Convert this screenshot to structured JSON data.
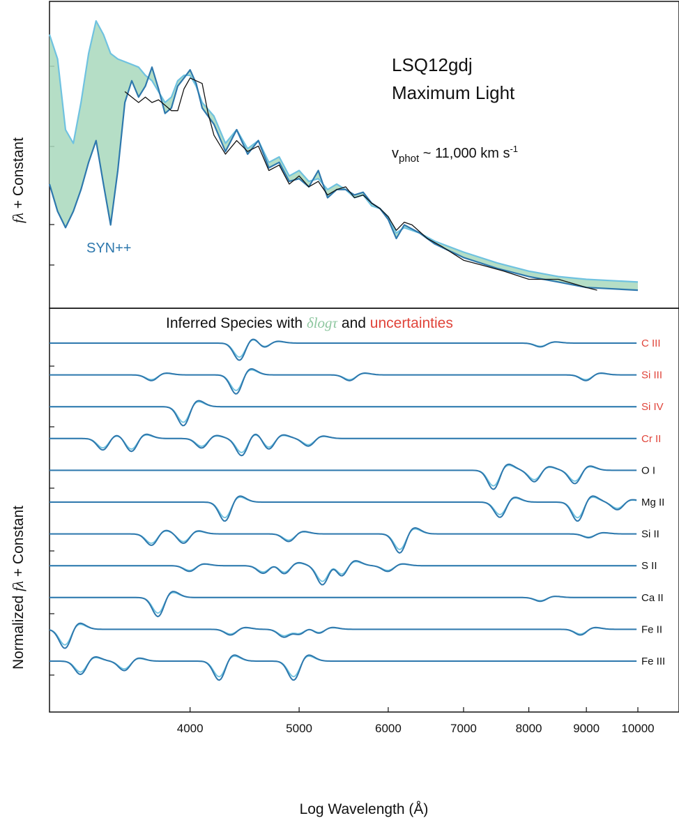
{
  "chart_data": [
    {
      "type": "line",
      "panel": "top",
      "ylabel_math": "fλ",
      "ylabel_rest": " + Constant",
      "annotations": {
        "object": "LSQ12gdj",
        "epoch": "Maximum Light",
        "vel_v": "v",
        "vel_sub": "phot",
        "vel_value": " ~ 11,000 km s",
        "vel_sup": "-1",
        "model": "SYN++"
      },
      "x_range": [
        3000,
        10000
      ],
      "x_scale": "log",
      "series": [
        {
          "name": "",
          "color": "#111111",
          "x": [
            3500,
            3550,
            3600,
            3650,
            3700,
            3750,
            3800,
            3850,
            3900,
            3950,
            4000,
            4050,
            4100,
            4150,
            4200,
            4300,
            4400,
            4500,
            4600,
            4700,
            4800,
            4900,
            5000,
            5100,
            5200,
            5300,
            5400,
            5500,
            5600,
            5700,
            5800,
            5900,
            6000,
            6100,
            6200,
            6300,
            6500,
            6700,
            7000,
            7300,
            7600,
            8000,
            8500,
            9000,
            9200
          ],
          "y": [
            0.74,
            0.72,
            0.7,
            0.72,
            0.7,
            0.71,
            0.69,
            0.67,
            0.67,
            0.75,
            0.79,
            0.78,
            0.77,
            0.66,
            0.58,
            0.51,
            0.56,
            0.52,
            0.54,
            0.45,
            0.47,
            0.4,
            0.43,
            0.39,
            0.41,
            0.36,
            0.38,
            0.39,
            0.35,
            0.36,
            0.33,
            0.31,
            0.28,
            0.23,
            0.26,
            0.25,
            0.2,
            0.17,
            0.12,
            0.1,
            0.08,
            0.05,
            0.05,
            0.02,
            0.01
          ]
        },
        {
          "name": "SYN++",
          "color": "#2e78ad",
          "x": [
            3000,
            3050,
            3100,
            3150,
            3200,
            3250,
            3300,
            3350,
            3400,
            3450,
            3500,
            3550,
            3600,
            3650,
            3700,
            3750,
            3800,
            3850,
            3900,
            3950,
            4000,
            4050,
            4100,
            4200,
            4300,
            4400,
            4500,
            4600,
            4700,
            4800,
            4900,
            5000,
            5100,
            5200,
            5300,
            5400,
            5500,
            5600,
            5700,
            5800,
            5900,
            6000,
            6100,
            6200,
            6400,
            6600,
            7000,
            7500,
            8000,
            8500,
            9000,
            10000
          ],
          "y": [
            0.4,
            0.3,
            0.24,
            0.3,
            0.38,
            0.48,
            0.56,
            0.4,
            0.25,
            0.45,
            0.7,
            0.78,
            0.72,
            0.76,
            0.83,
            0.75,
            0.66,
            0.68,
            0.76,
            0.79,
            0.82,
            0.77,
            0.68,
            0.62,
            0.52,
            0.6,
            0.51,
            0.56,
            0.46,
            0.48,
            0.41,
            0.42,
            0.39,
            0.45,
            0.35,
            0.38,
            0.38,
            0.36,
            0.37,
            0.33,
            0.31,
            0.27,
            0.2,
            0.25,
            0.22,
            0.18,
            0.13,
            0.09,
            0.06,
            0.04,
            0.02,
            0.01
          ]
        },
        {
          "name": "",
          "color": "#6fc2e0",
          "x": [
            3000,
            3050,
            3100,
            3150,
            3200,
            3250,
            3300,
            3350,
            3400,
            3450,
            3500,
            3550,
            3600,
            3650,
            3700,
            3750,
            3800,
            3850,
            3900,
            3950,
            4000,
            4050,
            4100,
            4200,
            4300,
            4400,
            4500,
            4600,
            4700,
            4800,
            4900,
            5000,
            5100,
            5200,
            5300,
            5400,
            5500,
            5600,
            5700,
            5800,
            5900,
            6000,
            6100,
            6200,
            6400,
            6600,
            7000,
            7500,
            8000,
            8500,
            9000,
            10000
          ],
          "y": [
            0.95,
            0.86,
            0.6,
            0.55,
            0.7,
            0.88,
            1.0,
            0.95,
            0.88,
            0.86,
            0.85,
            0.84,
            0.83,
            0.8,
            0.78,
            0.74,
            0.7,
            0.72,
            0.78,
            0.8,
            0.8,
            0.76,
            0.7,
            0.65,
            0.55,
            0.6,
            0.53,
            0.56,
            0.48,
            0.5,
            0.43,
            0.45,
            0.41,
            0.42,
            0.38,
            0.4,
            0.38,
            0.35,
            0.36,
            0.32,
            0.31,
            0.28,
            0.22,
            0.24,
            0.22,
            0.19,
            0.15,
            0.11,
            0.08,
            0.06,
            0.05,
            0.04
          ]
        }
      ]
    },
    {
      "type": "line",
      "panel": "bottom",
      "title_pre": "Inferred Species with ",
      "title_green": "δlogτ",
      "title_mid": " and ",
      "title_red": "uncertainties",
      "ylabel_pre": "Normalized ",
      "ylabel_math": "fλ",
      "ylabel_rest": " + Constant",
      "xlabel": "Log Wavelength (Å)",
      "x_range": [
        3000,
        10000
      ],
      "x_scale": "log",
      "x_ticks": [
        "4000",
        "5000",
        "6000",
        "7000",
        "8000",
        "9000",
        "10000"
      ],
      "species": [
        {
          "name": "C III",
          "flag": "uncertain",
          "lines": [
            4430,
            4650,
            8200
          ],
          "depths": [
            0.9,
            0.3,
            0.2
          ]
        },
        {
          "name": "Si III",
          "flag": "uncertain",
          "lines": [
            3700,
            4400,
            5550,
            9000
          ],
          "depths": [
            0.3,
            1.0,
            0.3,
            0.3
          ]
        },
        {
          "name": "Si IV",
          "flag": "uncertain",
          "lines": [
            3950
          ],
          "depths": [
            1.0
          ]
        },
        {
          "name": "Cr II",
          "flag": "uncertain",
          "lines": [
            3350,
            3550,
            4100,
            4450,
            4700,
            5100
          ],
          "depths": [
            0.6,
            0.7,
            0.5,
            0.9,
            0.6,
            0.4
          ]
        },
        {
          "name": "O I",
          "flag": "",
          "lines": [
            7450,
            8100,
            8800
          ],
          "depths": [
            1.0,
            0.6,
            0.7
          ]
        },
        {
          "name": "Mg II",
          "flag": "",
          "lines": [
            4300,
            7550,
            8850,
            9600
          ],
          "depths": [
            1.0,
            0.8,
            1.0,
            0.4
          ]
        },
        {
          "name": "Si II",
          "flag": "",
          "lines": [
            3700,
            3950,
            4900,
            6150,
            9050
          ],
          "depths": [
            0.6,
            0.5,
            0.4,
            1.0,
            0.2
          ]
        },
        {
          "name": "S II",
          "flag": "",
          "lines": [
            4000,
            4650,
            4850,
            5250,
            5450,
            6000
          ],
          "depths": [
            0.3,
            0.4,
            0.5,
            1.0,
            0.8,
            0.3
          ]
        },
        {
          "name": "Ca II",
          "flag": "",
          "lines": [
            3750,
            8200
          ],
          "depths": [
            1.0,
            0.2
          ]
        },
        {
          "name": "Fe II",
          "flag": "",
          "lines": [
            3100,
            4350,
            4850,
            5000,
            5200,
            8900
          ],
          "depths": [
            1.0,
            0.3,
            0.4,
            0.4,
            0.3,
            0.3
          ]
        },
        {
          "name": "Fe III",
          "flag": "",
          "lines": [
            3200,
            3500,
            4250,
            4950
          ],
          "depths": [
            0.7,
            0.5,
            1.0,
            1.0
          ]
        }
      ]
    }
  ],
  "colors": {
    "dark_blue": "#2e78ad",
    "light_blue": "#6fc2e0",
    "green_fill": "#a8d8bc",
    "red_label": "#e0443a",
    "green_text": "#8ec7a0",
    "axis": "#111111"
  }
}
